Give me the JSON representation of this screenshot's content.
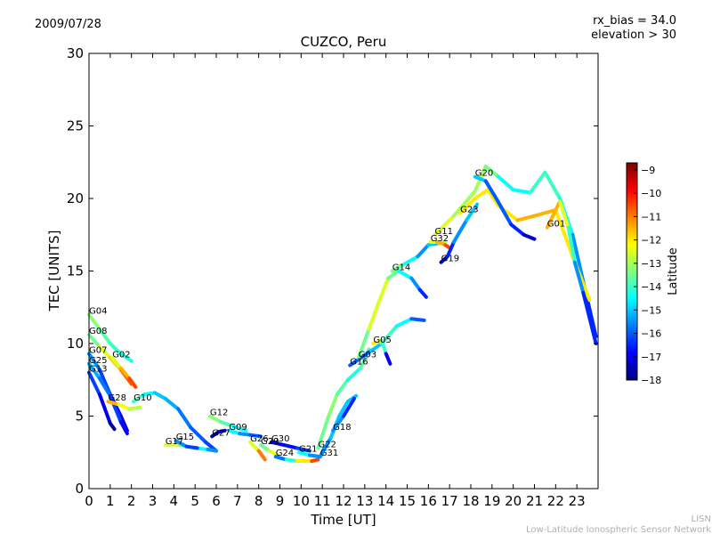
{
  "header": {
    "date": "2009/07/28",
    "bias_line": "rx_bias = 34.0",
    "elevation_line": "elevation > 30"
  },
  "footer": {
    "org_short": "LISN",
    "org_full": "Low-Latitude Ionospheric Sensor Network"
  },
  "chart_data": {
    "type": "scatter",
    "title": "CUZCO, Peru",
    "xlabel": "Time [UT]",
    "ylabel": "TEC [UNITS]",
    "xlim": [
      0,
      24
    ],
    "ylim": [
      0,
      30
    ],
    "xticks": [
      "0",
      "1",
      "2",
      "3",
      "4",
      "5",
      "6",
      "7",
      "8",
      "9",
      "10",
      "11",
      "12",
      "13",
      "14",
      "15",
      "16",
      "17",
      "18",
      "19",
      "20",
      "21",
      "22",
      "23"
    ],
    "yticks": [
      "0",
      "5",
      "10",
      "15",
      "20",
      "25",
      "30"
    ],
    "grid": false,
    "colorbar": {
      "label": "Latitude",
      "range": [
        -18,
        -8.7
      ],
      "ticks": [
        "-9",
        "-10",
        "-11",
        "-12",
        "-13",
        "-14",
        "-15",
        "-16",
        "-17",
        "-18"
      ],
      "colors": [
        "#00007f",
        "#0000ff",
        "#007fff",
        "#00ffff",
        "#7fff7f",
        "#ffff00",
        "#ff7f00",
        "#ff0000",
        "#7f0000"
      ]
    },
    "series": [
      {
        "name": "G04",
        "points": [
          [
            0.0,
            12.0,
            -13
          ],
          [
            0.5,
            11.0,
            -13.5
          ],
          [
            1.0,
            10.0,
            -14
          ],
          [
            1.5,
            9.3,
            -14
          ],
          [
            2.0,
            8.8,
            -14.5
          ]
        ]
      },
      {
        "name": "G08",
        "points": [
          [
            0.0,
            10.6,
            -14
          ],
          [
            0.5,
            9.8,
            -13
          ],
          [
            1.0,
            9.0,
            -12
          ],
          [
            1.5,
            8.2,
            -11.5
          ],
          [
            2.0,
            7.2,
            -10
          ]
        ]
      },
      {
        "name": "G07",
        "points": [
          [
            0.0,
            9.3,
            -15
          ],
          [
            0.5,
            8.2,
            -16
          ],
          [
            1.0,
            6.5,
            -16.5
          ],
          [
            1.5,
            5.0,
            -17
          ],
          [
            1.8,
            4.0,
            -17.5
          ]
        ]
      },
      {
        "name": "G02",
        "points": [
          [
            1.1,
            9.0,
            -13
          ],
          [
            1.5,
            8.3,
            -12
          ],
          [
            1.9,
            7.6,
            -11
          ],
          [
            2.2,
            7.0,
            -10
          ]
        ]
      },
      {
        "name": "G25",
        "points": [
          [
            0.0,
            8.6,
            -15
          ],
          [
            0.5,
            7.6,
            -15.5
          ],
          [
            1.0,
            6.4,
            -16
          ],
          [
            1.5,
            4.6,
            -16.5
          ],
          [
            1.8,
            3.8,
            -17
          ]
        ]
      },
      {
        "name": "G13",
        "points": [
          [
            0.0,
            8.0,
            -16
          ],
          [
            0.5,
            6.5,
            -16.5
          ],
          [
            1.0,
            4.5,
            -17.5
          ],
          [
            1.2,
            4.1,
            -18
          ]
        ]
      },
      {
        "name": "G28",
        "points": [
          [
            0.9,
            6.0,
            -11
          ],
          [
            1.4,
            5.8,
            -12
          ],
          [
            1.9,
            5.5,
            -12.5
          ],
          [
            2.4,
            5.6,
            -13
          ]
        ]
      },
      {
        "name": "G10",
        "points": [
          [
            2.1,
            6.0,
            -14
          ],
          [
            2.6,
            6.5,
            -14
          ],
          [
            3.1,
            6.6,
            -15
          ],
          [
            3.6,
            6.2,
            -15
          ],
          [
            4.2,
            5.5,
            -15.5
          ],
          [
            4.8,
            4.2,
            -16
          ],
          [
            5.5,
            3.2,
            -16
          ],
          [
            6.0,
            2.6,
            -16.5
          ]
        ]
      },
      {
        "name": "G12",
        "points": [
          [
            5.7,
            5.0,
            -13
          ],
          [
            6.2,
            4.6,
            -13.5
          ],
          [
            6.8,
            4.3,
            -14
          ],
          [
            7.4,
            4.0,
            -15
          ]
        ]
      },
      {
        "name": "G17",
        "points": [
          [
            3.6,
            3.0,
            -12
          ],
          [
            4.3,
            3.0,
            -13
          ],
          [
            5.0,
            2.8,
            -14
          ],
          [
            5.6,
            2.7,
            -15
          ],
          [
            6.0,
            2.6,
            -16
          ]
        ]
      },
      {
        "name": "G15",
        "points": [
          [
            4.1,
            3.3,
            -15
          ],
          [
            4.6,
            2.9,
            -16
          ],
          [
            5.1,
            2.8,
            -16.5
          ]
        ]
      },
      {
        "name": "G27",
        "points": [
          [
            5.8,
            3.6,
            -18
          ],
          [
            6.1,
            3.9,
            -17.5
          ],
          [
            6.4,
            4.0,
            -17
          ]
        ]
      },
      {
        "name": "G09",
        "points": [
          [
            6.6,
            4.0,
            -14
          ],
          [
            7.1,
            3.8,
            -15
          ],
          [
            7.6,
            3.7,
            -16
          ],
          [
            8.1,
            3.6,
            -16
          ]
        ]
      },
      {
        "name": "G26",
        "points": [
          [
            7.6,
            3.2,
            -13
          ],
          [
            8.0,
            2.6,
            -12
          ],
          [
            8.3,
            2.0,
            -10
          ]
        ]
      },
      {
        "name": "G29",
        "points": [
          [
            8.1,
            3.0,
            -14
          ],
          [
            8.5,
            2.6,
            -13
          ],
          [
            8.9,
            2.3,
            -12
          ]
        ]
      },
      {
        "name": "G30",
        "points": [
          [
            8.6,
            3.2,
            -17
          ],
          [
            9.2,
            3.0,
            -17
          ],
          [
            9.8,
            2.8,
            -16.5
          ],
          [
            10.4,
            2.6,
            -16
          ]
        ]
      },
      {
        "name": "G24",
        "points": [
          [
            8.8,
            2.2,
            -16
          ],
          [
            9.3,
            2.0,
            -15.5
          ],
          [
            9.8,
            1.9,
            -13
          ],
          [
            10.5,
            1.9,
            -11
          ],
          [
            10.8,
            2.0,
            -10
          ]
        ]
      },
      {
        "name": "G21",
        "points": [
          [
            9.9,
            2.5,
            -14
          ],
          [
            10.4,
            2.3,
            -15
          ],
          [
            10.9,
            2.2,
            -16
          ],
          [
            11.1,
            2.8,
            -16
          ]
        ]
      },
      {
        "name": "G31",
        "points": [
          [
            10.9,
            2.2,
            -16
          ],
          [
            11.4,
            3.5,
            -15
          ],
          [
            11.8,
            5.0,
            -15
          ],
          [
            12.2,
            6.0,
            -15
          ],
          [
            12.6,
            6.4,
            -15
          ]
        ]
      },
      {
        "name": "G18",
        "points": [
          [
            11.5,
            4.0,
            -15
          ],
          [
            12.0,
            5.0,
            -16
          ],
          [
            12.5,
            6.2,
            -17
          ]
        ]
      },
      {
        "name": "G22",
        "points": [
          [
            10.8,
            2.8,
            -14
          ],
          [
            11.3,
            5.0,
            -13
          ],
          [
            11.7,
            6.5,
            -13.5
          ],
          [
            12.2,
            7.5,
            -14
          ],
          [
            12.8,
            8.3,
            -14.5
          ],
          [
            13.2,
            9.6,
            -13
          ]
        ]
      },
      {
        "name": "G16",
        "points": [
          [
            12.3,
            8.5,
            -16
          ],
          [
            12.8,
            9.0,
            -16
          ],
          [
            13.3,
            9.5,
            -16
          ],
          [
            13.8,
            10.0,
            -14
          ],
          [
            14.5,
            11.2,
            -14
          ],
          [
            15.2,
            11.7,
            -15
          ],
          [
            15.8,
            11.6,
            -17
          ]
        ]
      },
      {
        "name": "G05",
        "points": [
          [
            13.4,
            10.0,
            -13
          ],
          [
            13.8,
            10.2,
            -11
          ],
          [
            14.0,
            9.3,
            -17
          ],
          [
            14.2,
            8.6,
            -17
          ]
        ]
      },
      {
        "name": "G03",
        "points": [
          [
            12.7,
            9.0,
            -14
          ],
          [
            13.2,
            11.0,
            -13
          ],
          [
            13.7,
            13.0,
            -12
          ],
          [
            14.1,
            14.5,
            -13
          ],
          [
            14.6,
            15.0,
            -14
          ],
          [
            15.2,
            14.5,
            -15
          ],
          [
            15.6,
            13.7,
            -16
          ],
          [
            15.9,
            13.2,
            -17
          ]
        ]
      },
      {
        "name": "G14",
        "points": [
          [
            14.3,
            15.0,
            -13
          ],
          [
            14.9,
            15.5,
            -14
          ],
          [
            15.5,
            16.0,
            -15
          ],
          [
            16.0,
            16.8,
            -16
          ],
          [
            16.5,
            16.9,
            -14
          ],
          [
            16.8,
            17.0,
            -12
          ]
        ]
      },
      {
        "name": "G32",
        "points": [
          [
            16.1,
            17.0,
            -13
          ],
          [
            16.4,
            17.0,
            -12
          ],
          [
            16.8,
            16.8,
            -11
          ],
          [
            17.0,
            16.6,
            -10
          ]
        ]
      },
      {
        "name": "G19",
        "points": [
          [
            16.6,
            15.6,
            -18
          ],
          [
            16.9,
            16.0,
            -17
          ],
          [
            17.2,
            17.0,
            -16
          ],
          [
            17.8,
            18.5,
            -15
          ],
          [
            18.3,
            19.6,
            -15
          ]
        ]
      },
      {
        "name": "G11",
        "points": [
          [
            16.3,
            17.5,
            -12
          ],
          [
            17.2,
            18.8,
            -13
          ],
          [
            18.2,
            20.5,
            -13
          ],
          [
            18.7,
            22.2,
            -13
          ],
          [
            19.3,
            21.5,
            -14
          ],
          [
            20.0,
            20.6,
            -15
          ],
          [
            20.8,
            20.4,
            -14
          ],
          [
            21.5,
            21.8,
            -14
          ],
          [
            22.2,
            20.0,
            -14
          ],
          [
            22.8,
            17.5,
            -15
          ],
          [
            23.5,
            13.0,
            -16
          ],
          [
            23.9,
            10.5,
            -17
          ]
        ]
      },
      {
        "name": "G23",
        "points": [
          [
            17.5,
            19.0,
            -12
          ],
          [
            18.2,
            20.0,
            -12
          ],
          [
            18.8,
            20.6,
            -12
          ],
          [
            19.3,
            19.5,
            -12
          ],
          [
            20.2,
            18.5,
            -12
          ],
          [
            21.0,
            18.8,
            -11
          ],
          [
            22.0,
            19.2,
            -12
          ],
          [
            22.8,
            16.0,
            -12
          ],
          [
            23.6,
            13.0,
            -12
          ]
        ]
      },
      {
        "name": "G20",
        "points": [
          [
            18.2,
            21.5,
            -14
          ],
          [
            18.7,
            21.2,
            -16
          ],
          [
            19.2,
            20.0,
            -16
          ],
          [
            19.9,
            18.2,
            -16
          ],
          [
            20.5,
            17.5,
            -17
          ],
          [
            21.0,
            17.2,
            -17.5
          ]
        ]
      },
      {
        "name": "G01",
        "points": [
          [
            21.6,
            18.0,
            -11
          ],
          [
            22.2,
            19.8,
            -12
          ],
          [
            22.6,
            18.0,
            -13
          ],
          [
            22.9,
            15.6,
            -15
          ],
          [
            23.3,
            13.5,
            -16
          ],
          [
            23.9,
            10.0,
            -17
          ]
        ]
      }
    ]
  }
}
